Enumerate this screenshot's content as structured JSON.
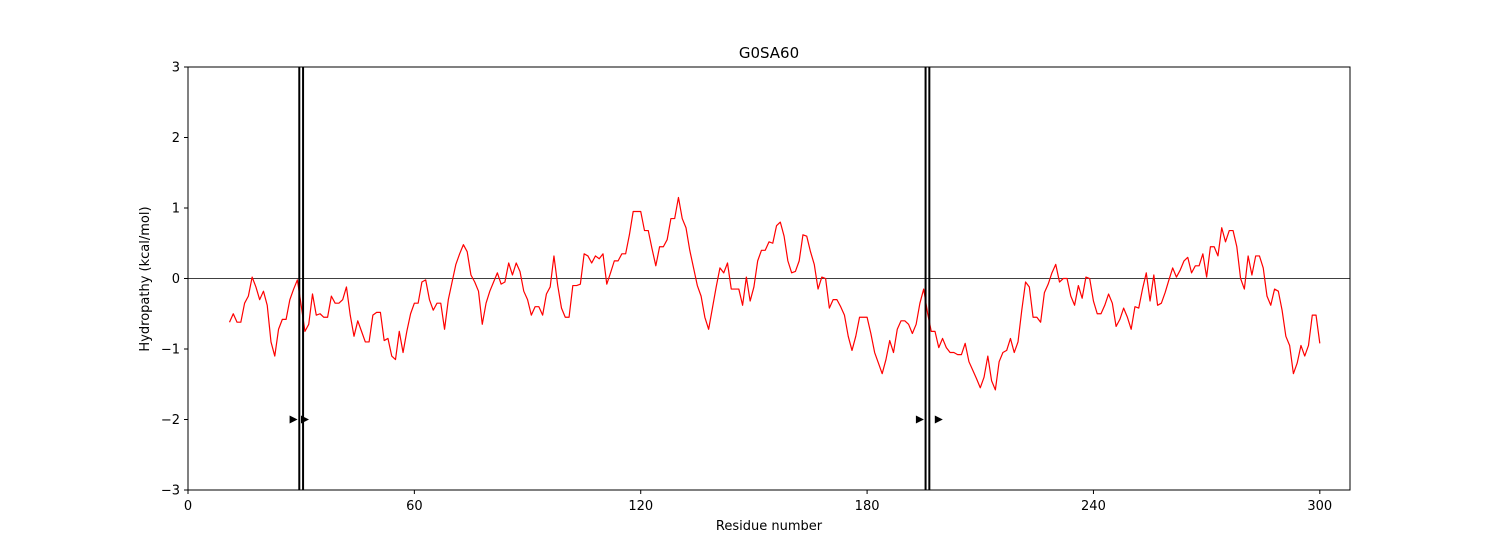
{
  "chart_data": {
    "type": "line",
    "title": "G0SA60",
    "xlabel": "Residue number",
    "ylabel": "Hydropathy (kcal/mol)",
    "xlim": [
      0,
      308
    ],
    "ylim": [
      -3,
      3
    ],
    "xticks": [
      0,
      60,
      120,
      180,
      240,
      300
    ],
    "yticks": [
      -3,
      -2,
      -1,
      0,
      1,
      2,
      3
    ],
    "grid": false,
    "zero_line": 0,
    "series": [
      {
        "color": "#ff0000",
        "x_start": 11,
        "values": [
          -0.62,
          -0.5,
          -0.62,
          -0.62,
          -0.35,
          -0.25,
          0.02,
          -0.12,
          -0.3,
          -0.18,
          -0.38,
          -0.9,
          -1.1,
          -0.72,
          -0.58,
          -0.58,
          -0.3,
          -0.15,
          -0.02,
          -0.38,
          -0.75,
          -0.65,
          -0.22,
          -0.52,
          -0.5,
          -0.55,
          -0.55,
          -0.25,
          -0.35,
          -0.35,
          -0.3,
          -0.12,
          -0.52,
          -0.82,
          -0.6,
          -0.75,
          -0.9,
          -0.9,
          -0.52,
          -0.48,
          -0.48,
          -0.88,
          -0.85,
          -1.1,
          -1.15,
          -0.75,
          -1.05,
          -0.75,
          -0.5,
          -0.35,
          -0.35,
          -0.05,
          -0.02,
          -0.3,
          -0.45,
          -0.35,
          -0.35,
          -0.72,
          -0.3,
          -0.05,
          0.2,
          0.35,
          0.48,
          0.38,
          0.05,
          -0.05,
          -0.18,
          -0.65,
          -0.35,
          -0.18,
          -0.05,
          0.08,
          -0.08,
          -0.05,
          0.22,
          0.05,
          0.22,
          0.1,
          -0.18,
          -0.3,
          -0.52,
          -0.4,
          -0.4,
          -0.52,
          -0.22,
          -0.12,
          0.32,
          -0.1,
          -0.42,
          -0.55,
          -0.55,
          -0.1,
          -0.1,
          -0.08,
          0.35,
          0.32,
          0.22,
          0.32,
          0.28,
          0.35,
          -0.08,
          0.08,
          0.25,
          0.25,
          0.35,
          0.35,
          0.62,
          0.95,
          0.95,
          0.95,
          0.68,
          0.68,
          0.42,
          0.18,
          0.45,
          0.45,
          0.55,
          0.85,
          0.85,
          1.15,
          0.85,
          0.72,
          0.4,
          0.15,
          -0.1,
          -0.25,
          -0.55,
          -0.72,
          -0.42,
          -0.12,
          0.15,
          0.08,
          0.22,
          -0.15,
          -0.15,
          -0.15,
          -0.38,
          0.02,
          -0.32,
          -0.12,
          0.25,
          0.4,
          0.4,
          0.52,
          0.5,
          0.75,
          0.8,
          0.6,
          0.25,
          0.08,
          0.1,
          0.25,
          0.62,
          0.6,
          0.38,
          0.2,
          -0.15,
          0.02,
          0.0,
          -0.42,
          -0.3,
          -0.3,
          -0.4,
          -0.52,
          -0.82,
          -1.02,
          -0.82,
          -0.55,
          -0.55,
          -0.55,
          -0.78,
          -1.05,
          -1.2,
          -1.35,
          -1.15,
          -0.88,
          -1.05,
          -0.72,
          -0.6,
          -0.6,
          -0.65,
          -0.78,
          -0.65,
          -0.35,
          -0.15,
          -0.48,
          -0.75,
          -0.75,
          -0.98,
          -0.85,
          -0.98,
          -1.05,
          -1.05,
          -1.08,
          -1.08,
          -0.92,
          -1.18,
          -1.3,
          -1.42,
          -1.55,
          -1.4,
          -1.1,
          -1.45,
          -1.58,
          -1.18,
          -1.05,
          -1.02,
          -0.85,
          -1.05,
          -0.9,
          -0.45,
          -0.05,
          -0.12,
          -0.55,
          -0.55,
          -0.62,
          -0.2,
          -0.08,
          0.08,
          0.2,
          -0.05,
          0.0,
          0.0,
          -0.25,
          -0.38,
          -0.1,
          -0.28,
          0.02,
          0.0,
          -0.32,
          -0.5,
          -0.5,
          -0.38,
          -0.22,
          -0.35,
          -0.68,
          -0.58,
          -0.42,
          -0.55,
          -0.72,
          -0.4,
          -0.42,
          -0.15,
          0.08,
          -0.32,
          0.05,
          -0.38,
          -0.35,
          -0.2,
          -0.02,
          0.15,
          0.02,
          0.12,
          0.25,
          0.3,
          0.08,
          0.18,
          0.18,
          0.35,
          0.02,
          0.45,
          0.45,
          0.32,
          0.72,
          0.52,
          0.68,
          0.68,
          0.45,
          0.0,
          -0.15,
          0.32,
          0.05,
          0.32,
          0.32,
          0.15,
          -0.25,
          -0.38,
          -0.15,
          -0.18,
          -0.45,
          -0.82,
          -0.95,
          -1.35,
          -1.2,
          -0.95,
          -1.1,
          -0.95,
          -0.52,
          -0.52,
          -0.92
        ]
      }
    ],
    "regions": [
      {
        "lines": [
          29.5,
          30.5
        ],
        "markers": [
          28,
          31
        ]
      },
      {
        "lines": [
          195.5,
          196.5
        ],
        "markers": [
          194,
          199
        ]
      }
    ],
    "marker_y": -2
  }
}
